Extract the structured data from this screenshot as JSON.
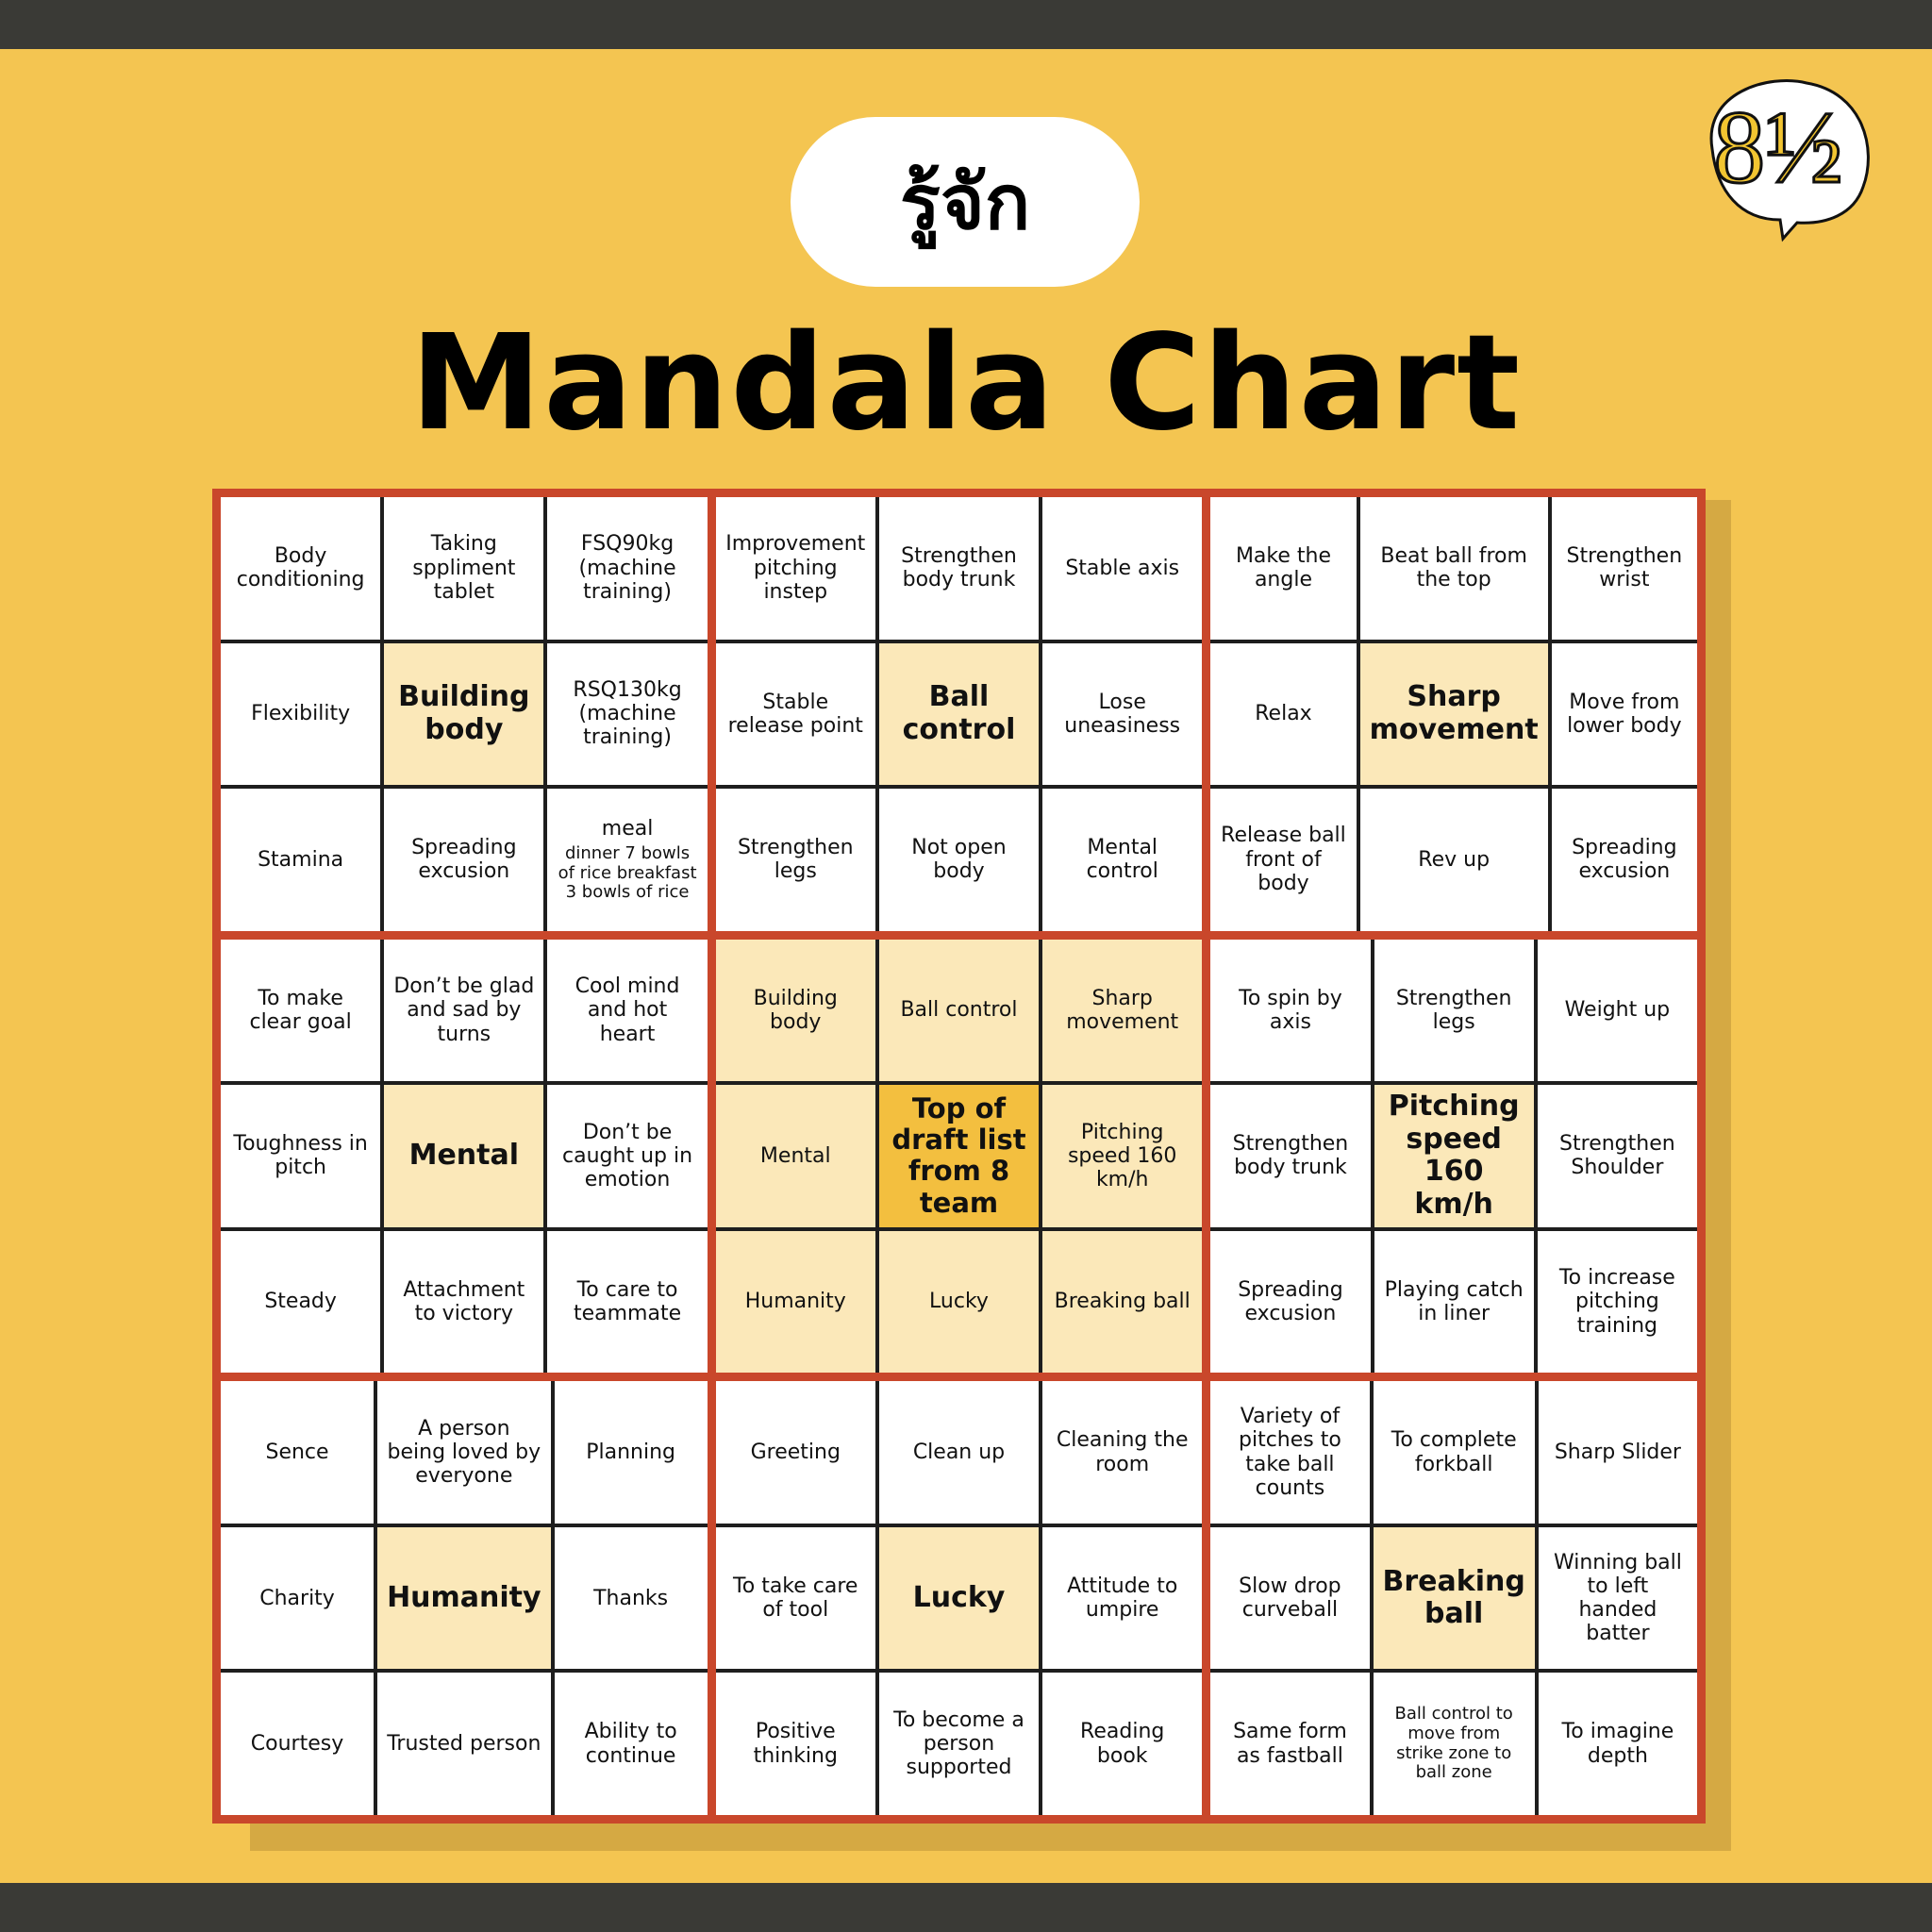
{
  "header": {
    "badge": "รู้จัก",
    "title": "Mandala Chart",
    "logo": "8½"
  },
  "table": {
    "rows": [
      [
        "Body conditioning",
        "Taking sppliment tablet",
        "FSQ90kg (machine training)",
        "Improvement pitching instep",
        "Strengthen body trunk",
        "Stable axis",
        "Make the angle",
        "Beat ball from the top",
        "Strengthen wrist"
      ],
      [
        "Flexibility",
        "Building body",
        "RSQ130kg (machine training)",
        "Stable release point",
        "Ball control",
        "Lose uneasiness",
        "Relax",
        "Sharp movement",
        "Move from lower body"
      ],
      [
        "Stamina",
        "Spreading excusion",
        {
          "text": "meal",
          "note": "dinner 7 bowls of rice breakfast 3 bowls of rice"
        },
        "Strengthen legs",
        "Not open body",
        "Mental control",
        "Release ball front of body",
        "Rev up",
        "Spreading excusion"
      ],
      [
        "To make clear goal",
        "Don’t be glad and sad by turns",
        "Cool mind and hot heart",
        "Building body",
        "Ball control",
        "Sharp movement",
        "To spin by axis",
        "Strengthen legs",
        "Weight up"
      ],
      [
        "Toughness in pitch",
        "Mental",
        "Don’t be caught up in emotion",
        "Mental",
        "Top of draft list from 8 team",
        "Pitching speed 160 km/h",
        "Strengthen body trunk",
        "Pitching speed 160 km/h",
        "Strengthen Shoulder"
      ],
      [
        "Steady",
        "Attachment to victory",
        "To care to teammate",
        "Humanity",
        "Lucky",
        "Breaking ball",
        "Spreading excusion",
        "Playing catch in liner",
        "To increase pitching training"
      ],
      [
        "Sence",
        "A person being loved by everyone",
        "Planning",
        "Greeting",
        "Clean up",
        "Cleaning the room",
        "Variety of pitches to take ball counts",
        "To complete forkball",
        "Sharp Slider"
      ],
      [
        "Charity",
        "Humanity",
        "Thanks",
        "To take care of tool",
        "Lucky",
        "Attitude to umpire",
        "Slow drop curveball",
        "Breaking ball",
        "Winning ball to left handed batter"
      ],
      [
        "Courtesy",
        "Trusted person",
        "Ability to continue",
        "Positive thinking",
        "To become a person supported",
        "Reading book",
        "Same form as fastball",
        "Ball control to move from strike zone to ball zone",
        "To imagine depth"
      ]
    ]
  }
}
